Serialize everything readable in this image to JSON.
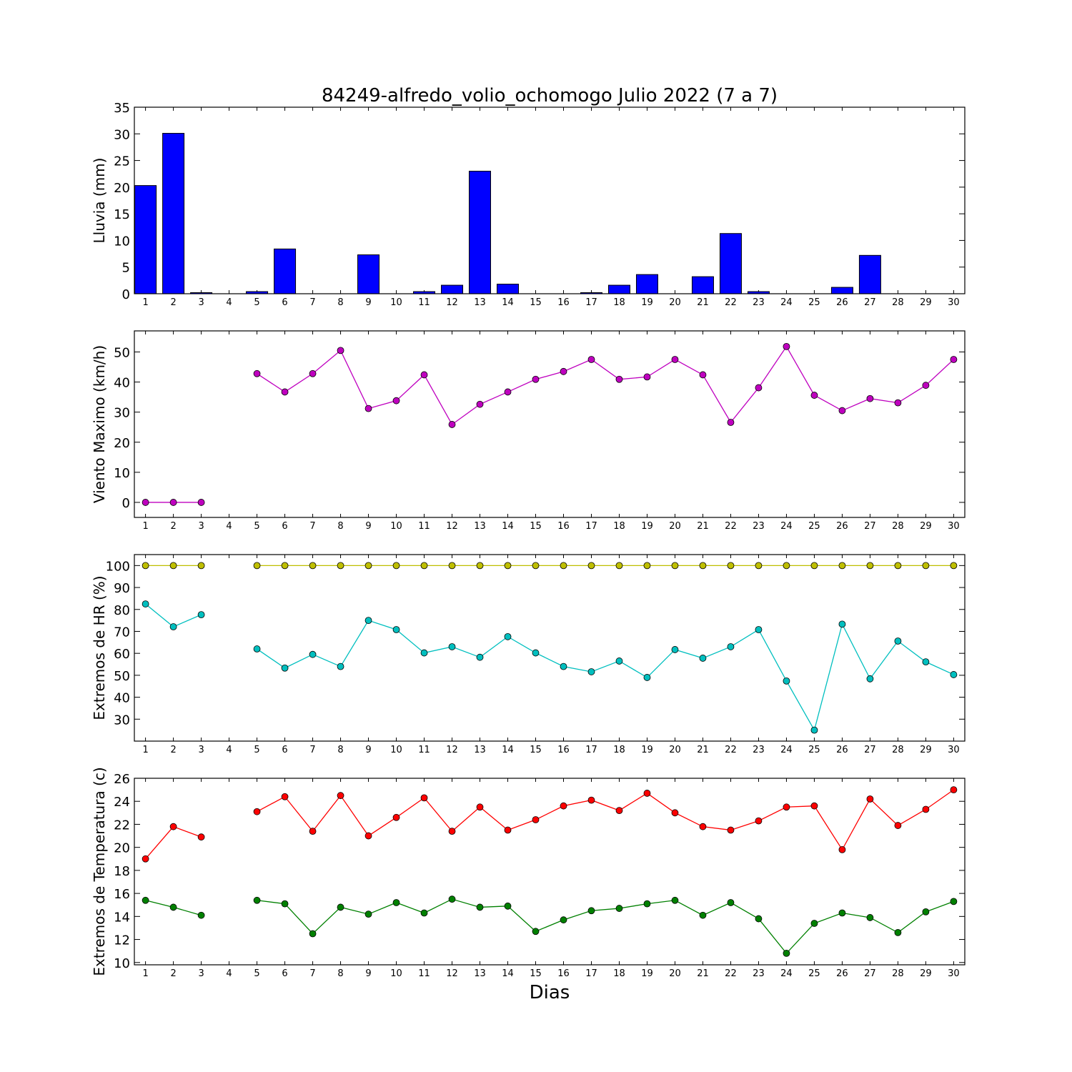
{
  "title": "84249-alfredo_volio_ochomogo Julio 2022  (7 a 7)",
  "xlabel": "Dias",
  "days": [
    1,
    2,
    3,
    4,
    5,
    6,
    7,
    8,
    9,
    10,
    11,
    12,
    13,
    14,
    15,
    16,
    17,
    18,
    19,
    20,
    21,
    22,
    23,
    24,
    25,
    26,
    27,
    28,
    29,
    30
  ],
  "colors": {
    "rain": "#0000ff",
    "wind": "#bf00bf",
    "hr_max": "#bfbf00",
    "hr_min": "#00bfbf",
    "t_max": "#ff0000",
    "t_min": "#008000"
  },
  "chart_data": [
    {
      "type": "bar",
      "ylabel": "Lluvia (mm)",
      "ylim": [
        0,
        35
      ],
      "yticks": [
        0,
        5,
        10,
        15,
        20,
        25,
        30,
        35
      ],
      "series": [
        {
          "values": [
            20.3,
            30.1,
            0.2,
            0,
            0.4,
            8.4,
            0,
            0,
            7.3,
            0,
            0.4,
            1.6,
            23.0,
            1.8,
            0,
            0,
            0.2,
            1.6,
            3.6,
            0,
            3.2,
            11.3,
            0.4,
            0,
            0,
            1.2,
            7.2,
            0,
            0,
            0
          ]
        }
      ]
    },
    {
      "type": "line",
      "ylabel": "Viento Maximo (km/h)",
      "ylim": [
        -5,
        57
      ],
      "yticks": [
        0,
        10,
        20,
        30,
        40,
        50
      ],
      "series": [
        {
          "values": [
            0,
            0,
            0,
            null,
            42.8,
            36.7,
            42.8,
            50.5,
            31.2,
            33.8,
            42.4,
            25.9,
            32.6,
            36.7,
            40.9,
            43.5,
            47.5,
            40.9,
            41.7,
            47.5,
            42.4,
            26.6,
            38.1,
            51.8,
            35.6,
            30.5,
            34.5,
            33.1,
            38.9,
            47.5
          ]
        }
      ]
    },
    {
      "type": "line",
      "ylabel": "Extremos de HR (%)",
      "ylim": [
        20,
        105
      ],
      "yticks": [
        30,
        40,
        50,
        60,
        70,
        80,
        90,
        100
      ],
      "series": [
        {
          "values": [
            100,
            100,
            100,
            null,
            100,
            100,
            100,
            100,
            100,
            100,
            100,
            100,
            100,
            100,
            100,
            100,
            100,
            100,
            100,
            100,
            100,
            100,
            100,
            100,
            100,
            100,
            100,
            100,
            100,
            100
          ]
        },
        {
          "values": [
            82.5,
            72.1,
            77.6,
            null,
            62.0,
            53.3,
            59.5,
            54.0,
            75.0,
            70.8,
            60.2,
            63.0,
            58.2,
            67.6,
            60.2,
            54.0,
            51.6,
            56.5,
            49.0,
            61.7,
            57.8,
            63.0,
            70.8,
            47.4,
            25.0,
            73.3,
            48.4,
            65.6,
            56.1,
            50.3
          ]
        }
      ]
    },
    {
      "type": "line",
      "ylabel": "Extremos de Temperatura (c)",
      "ylim": [
        9.8,
        26
      ],
      "yticks": [
        10,
        12,
        14,
        16,
        18,
        20,
        22,
        24,
        26
      ],
      "series": [
        {
          "values": [
            19.0,
            21.8,
            20.9,
            null,
            23.1,
            24.4,
            21.4,
            24.5,
            21.0,
            22.6,
            24.3,
            21.4,
            23.5,
            21.5,
            22.4,
            23.6,
            24.1,
            23.2,
            24.7,
            23.0,
            21.8,
            21.5,
            22.3,
            23.5,
            23.6,
            19.8,
            24.2,
            21.9,
            23.3,
            25.0
          ]
        },
        {
          "values": [
            15.4,
            14.8,
            14.1,
            null,
            15.4,
            15.1,
            12.5,
            14.8,
            14.2,
            15.2,
            14.3,
            15.5,
            14.8,
            14.9,
            12.7,
            13.7,
            14.5,
            14.7,
            15.1,
            15.4,
            14.1,
            15.2,
            13.8,
            10.8,
            13.4,
            14.3,
            13.9,
            12.6,
            14.4,
            15.3
          ]
        }
      ]
    }
  ]
}
